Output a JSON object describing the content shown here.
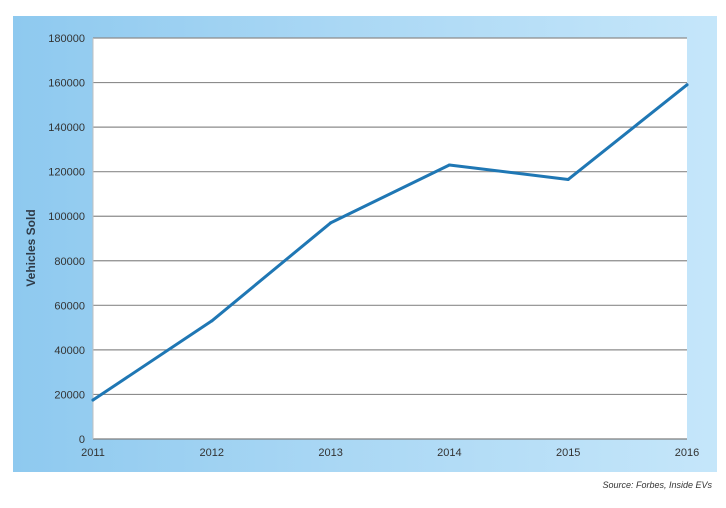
{
  "chart_data": {
    "type": "line",
    "title": "",
    "xlabel": "",
    "ylabel": "Vehicles Sold",
    "x": [
      "2011",
      "2012",
      "2013",
      "2014",
      "2015",
      "2016"
    ],
    "series": [
      {
        "values": [
          17500,
          53000,
          97000,
          123000,
          116500,
          159000
        ]
      }
    ],
    "ylim": [
      0,
      180000
    ],
    "yticks": [
      0,
      20000,
      40000,
      60000,
      80000,
      100000,
      120000,
      140000,
      160000,
      180000
    ],
    "grid": true,
    "legend": "none",
    "line_color": "#1f77b4"
  },
  "source_note": "Source: Forbes, Inside EVs"
}
